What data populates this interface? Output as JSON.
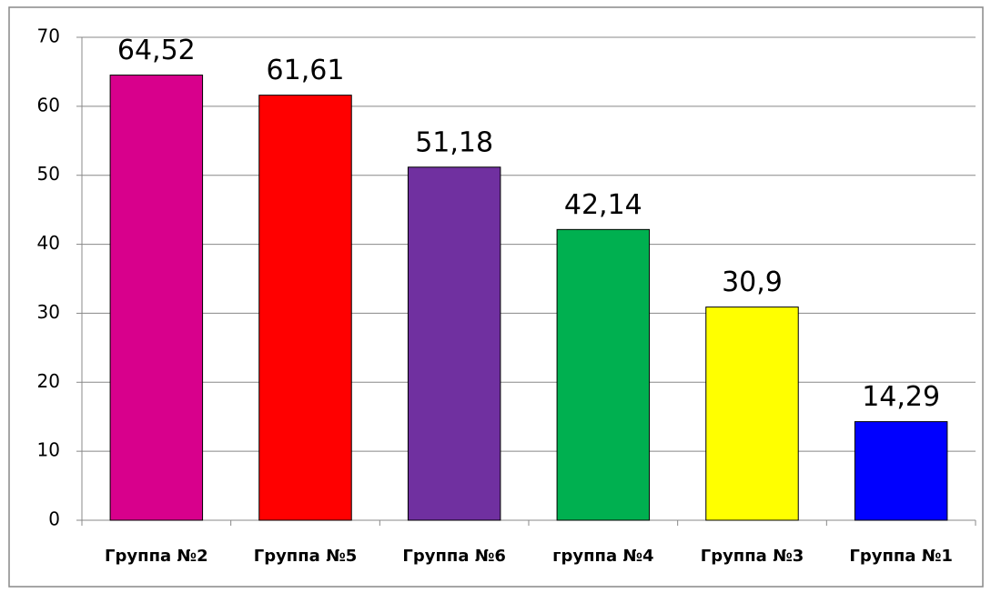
{
  "chart_data": {
    "type": "bar",
    "categories": [
      "Группа №2",
      "Группа №5",
      "Группа №6",
      "группа №4",
      "Группа №3",
      "Группа №1"
    ],
    "values": [
      64.52,
      61.61,
      51.18,
      42.14,
      30.9,
      14.29
    ],
    "value_labels": [
      "64,52",
      "61,61",
      "51,18",
      "42,14",
      "30,9",
      "14,29"
    ],
    "colors": [
      "#d8008c",
      "#ff0000",
      "#7030a0",
      "#00b050",
      "#ffff00",
      "#0000ff"
    ],
    "ylim": [
      0,
      70
    ],
    "yticks": [
      0,
      10,
      20,
      30,
      40,
      50,
      60,
      70
    ],
    "grid": true
  }
}
